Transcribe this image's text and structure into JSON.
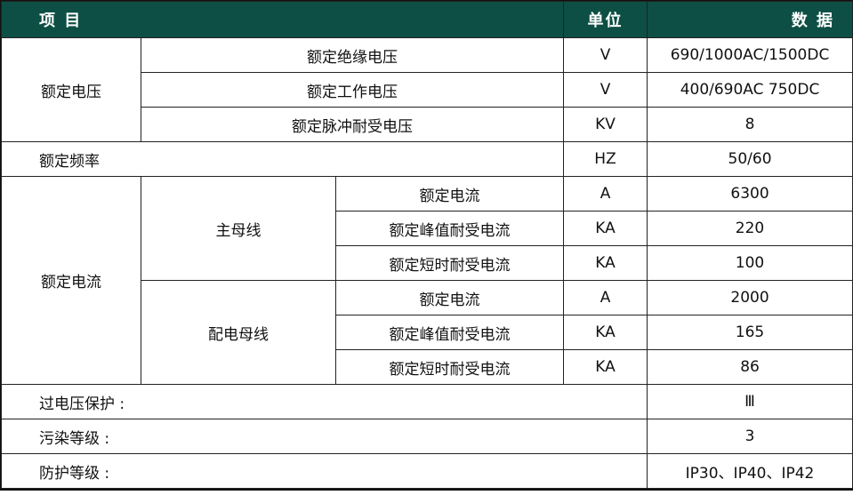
{
  "header": {
    "item": "项 目",
    "unit": "单位",
    "data": "数 据"
  },
  "header_color": "#0d4f44",
  "voltage": {
    "label": "额定电压",
    "rows": [
      {
        "name": "额定绝缘电压",
        "unit": "V",
        "value": "690/1000AC/1500DC"
      },
      {
        "name": "额定工作电压",
        "unit": "V",
        "value": "400/690AC 750DC"
      },
      {
        "name": "额定脉冲耐受电压",
        "unit": "KV",
        "value": "8"
      }
    ]
  },
  "frequency": {
    "label": "额定频率",
    "unit": "HZ",
    "value": "50/60"
  },
  "current": {
    "label": "额定电流",
    "groups": [
      {
        "name": "主母线",
        "rows": [
          {
            "name": "额定电流",
            "unit": "A",
            "value": "6300"
          },
          {
            "name": "额定峰值耐受电流",
            "unit": "KA",
            "value": "220"
          },
          {
            "name": "额定短时耐受电流",
            "unit": "KA",
            "value": "100"
          }
        ]
      },
      {
        "name": "配电母线",
        "rows": [
          {
            "name": "额定电流",
            "unit": "A",
            "value": "2000"
          },
          {
            "name": "额定峰值耐受电流",
            "unit": "KA",
            "value": "165"
          },
          {
            "name": "额定短时耐受电流",
            "unit": "KA",
            "value": "86"
          }
        ]
      }
    ]
  },
  "misc": [
    {
      "label": "过电压保护 :",
      "value": "Ⅲ"
    },
    {
      "label": "污染等级 :",
      "value": "3"
    },
    {
      "label": "防护等级 :",
      "value": "IP30、IP40、IP42"
    }
  ]
}
